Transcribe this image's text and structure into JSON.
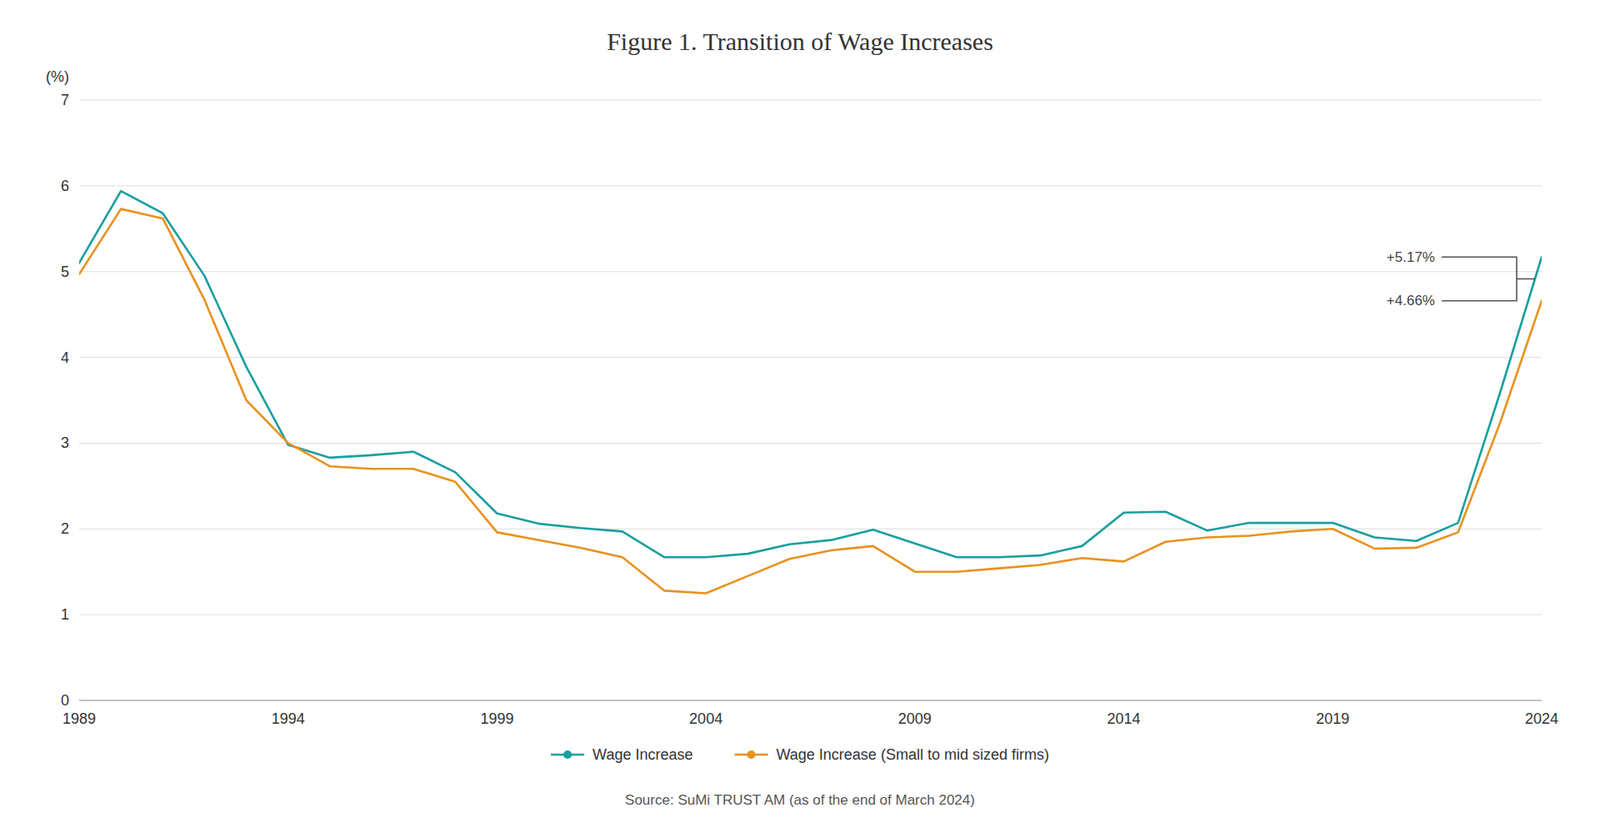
{
  "chart_data": {
    "type": "line",
    "title": "Figure 1. Transition of Wage Increases",
    "y_label": "(%)",
    "source": "Source: SuMi TRUST AM (as of the end of March 2024)",
    "x": [
      1989,
      1990,
      1991,
      1992,
      1993,
      1994,
      1995,
      1996,
      1997,
      1998,
      1999,
      2000,
      2001,
      2002,
      2003,
      2004,
      2005,
      2006,
      2007,
      2008,
      2009,
      2010,
      2011,
      2012,
      2013,
      2014,
      2015,
      2016,
      2017,
      2018,
      2019,
      2020,
      2021,
      2022,
      2023,
      2024
    ],
    "series": [
      {
        "name": "Wage Increase",
        "color": "#1a9fa0",
        "marker": "none",
        "values": [
          5.1,
          5.94,
          5.68,
          4.95,
          3.89,
          2.98,
          2.83,
          2.86,
          2.9,
          2.66,
          2.18,
          2.06,
          2.01,
          1.97,
          1.67,
          1.67,
          1.71,
          1.82,
          1.87,
          1.99,
          1.83,
          1.67,
          1.67,
          1.69,
          1.8,
          2.19,
          2.2,
          1.98,
          2.07,
          2.07,
          2.07,
          1.9,
          1.86,
          2.07,
          3.58,
          5.17
        ]
      },
      {
        "name": "Wage Increase (Small to mid sized firms)",
        "color": "#e8921e",
        "marker": "none",
        "values": [
          4.97,
          5.73,
          5.62,
          4.67,
          3.5,
          3.0,
          2.73,
          2.7,
          2.7,
          2.55,
          1.96,
          1.87,
          1.78,
          1.67,
          1.28,
          1.25,
          1.45,
          1.65,
          1.75,
          1.8,
          1.5,
          1.5,
          1.54,
          1.58,
          1.66,
          1.62,
          1.85,
          1.9,
          1.92,
          1.97,
          2.0,
          1.77,
          1.78,
          1.96,
          3.23,
          4.66
        ]
      }
    ],
    "annotations": [
      {
        "label": "+5.17%",
        "value": 5.17
      },
      {
        "label": "+4.66%",
        "value": 4.66
      }
    ],
    "xlim": [
      1989,
      2024
    ],
    "xticks": [
      1989,
      1994,
      1999,
      2004,
      2009,
      2014,
      2019,
      2024
    ],
    "ylim": [
      0,
      7
    ],
    "yticks": [
      0,
      1,
      2,
      3,
      4,
      5,
      6,
      7
    ],
    "grid": true,
    "legend": "bottom"
  }
}
